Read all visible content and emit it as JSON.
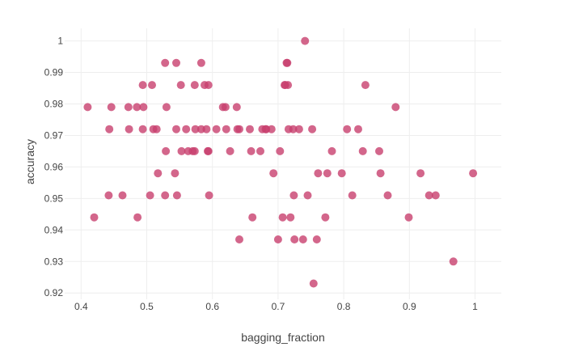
{
  "chart_data": {
    "type": "scatter",
    "xlabel": "bagging_fraction",
    "ylabel": "accuracy",
    "xlim": [
      0.375,
      1.04
    ],
    "ylim": [
      0.918,
      1.004
    ],
    "xticks": [
      0.4,
      0.5,
      0.6,
      0.7,
      0.8,
      0.9,
      1
    ],
    "xtick_labels": [
      "0.4",
      "0.5",
      "0.6",
      "0.7",
      "0.8",
      "0.9",
      "1"
    ],
    "yticks": [
      0.92,
      0.93,
      0.94,
      0.95,
      0.96,
      0.97,
      0.98,
      0.99,
      1
    ],
    "ytick_labels": [
      "0.92",
      "0.93",
      "0.94",
      "0.95",
      "0.96",
      "0.97",
      "0.98",
      "0.99",
      "1"
    ],
    "grid": true,
    "legend": "none",
    "marker_color": "#c8406e",
    "points": [
      {
        "x": 0.41,
        "y": 0.979
      },
      {
        "x": 0.42,
        "y": 0.944
      },
      {
        "x": 0.442,
        "y": 0.951
      },
      {
        "x": 0.443,
        "y": 0.972
      },
      {
        "x": 0.446,
        "y": 0.979
      },
      {
        "x": 0.463,
        "y": 0.951
      },
      {
        "x": 0.472,
        "y": 0.979
      },
      {
        "x": 0.473,
        "y": 0.972
      },
      {
        "x": 0.485,
        "y": 0.979
      },
      {
        "x": 0.486,
        "y": 0.944
      },
      {
        "x": 0.494,
        "y": 0.986
      },
      {
        "x": 0.495,
        "y": 0.979
      },
      {
        "x": 0.494,
        "y": 0.972
      },
      {
        "x": 0.505,
        "y": 0.951
      },
      {
        "x": 0.508,
        "y": 0.986
      },
      {
        "x": 0.51,
        "y": 0.972
      },
      {
        "x": 0.515,
        "y": 0.972
      },
      {
        "x": 0.517,
        "y": 0.958
      },
      {
        "x": 0.528,
        "y": 0.993
      },
      {
        "x": 0.528,
        "y": 0.951
      },
      {
        "x": 0.529,
        "y": 0.965
      },
      {
        "x": 0.53,
        "y": 0.979
      },
      {
        "x": 0.543,
        "y": 0.958
      },
      {
        "x": 0.545,
        "y": 0.993
      },
      {
        "x": 0.545,
        "y": 0.972
      },
      {
        "x": 0.546,
        "y": 0.951
      },
      {
        "x": 0.552,
        "y": 0.986
      },
      {
        "x": 0.553,
        "y": 0.965
      },
      {
        "x": 0.56,
        "y": 0.972
      },
      {
        "x": 0.563,
        "y": 0.965
      },
      {
        "x": 0.57,
        "y": 0.965
      },
      {
        "x": 0.573,
        "y": 0.986
      },
      {
        "x": 0.573,
        "y": 0.965
      },
      {
        "x": 0.574,
        "y": 0.972
      },
      {
        "x": 0.583,
        "y": 0.993
      },
      {
        "x": 0.583,
        "y": 0.972
      },
      {
        "x": 0.588,
        "y": 0.986
      },
      {
        "x": 0.591,
        "y": 0.972
      },
      {
        "x": 0.593,
        "y": 0.965
      },
      {
        "x": 0.594,
        "y": 0.965
      },
      {
        "x": 0.594,
        "y": 0.986
      },
      {
        "x": 0.595,
        "y": 0.951
      },
      {
        "x": 0.606,
        "y": 0.972
      },
      {
        "x": 0.616,
        "y": 0.979
      },
      {
        "x": 0.62,
        "y": 0.979
      },
      {
        "x": 0.621,
        "y": 0.972
      },
      {
        "x": 0.627,
        "y": 0.965
      },
      {
        "x": 0.637,
        "y": 0.979
      },
      {
        "x": 0.638,
        "y": 0.972
      },
      {
        "x": 0.641,
        "y": 0.972
      },
      {
        "x": 0.641,
        "y": 0.937
      },
      {
        "x": 0.657,
        "y": 0.972
      },
      {
        "x": 0.659,
        "y": 0.965
      },
      {
        "x": 0.661,
        "y": 0.944
      },
      {
        "x": 0.673,
        "y": 0.965
      },
      {
        "x": 0.676,
        "y": 0.972
      },
      {
        "x": 0.681,
        "y": 0.972
      },
      {
        "x": 0.682,
        "y": 0.972
      },
      {
        "x": 0.69,
        "y": 0.972
      },
      {
        "x": 0.693,
        "y": 0.958
      },
      {
        "x": 0.7,
        "y": 0.937
      },
      {
        "x": 0.703,
        "y": 0.965
      },
      {
        "x": 0.707,
        "y": 0.944
      },
      {
        "x": 0.71,
        "y": 0.986
      },
      {
        "x": 0.711,
        "y": 0.986
      },
      {
        "x": 0.713,
        "y": 0.993
      },
      {
        "x": 0.714,
        "y": 0.993
      },
      {
        "x": 0.715,
        "y": 0.986
      },
      {
        "x": 0.716,
        "y": 0.972
      },
      {
        "x": 0.719,
        "y": 0.944
      },
      {
        "x": 0.723,
        "y": 0.972
      },
      {
        "x": 0.724,
        "y": 0.951
      },
      {
        "x": 0.725,
        "y": 0.937
      },
      {
        "x": 0.732,
        "y": 0.972
      },
      {
        "x": 0.738,
        "y": 0.937
      },
      {
        "x": 0.741,
        "y": 1.0
      },
      {
        "x": 0.745,
        "y": 0.951
      },
      {
        "x": 0.752,
        "y": 0.972
      },
      {
        "x": 0.754,
        "y": 0.923
      },
      {
        "x": 0.759,
        "y": 0.937
      },
      {
        "x": 0.761,
        "y": 0.958
      },
      {
        "x": 0.772,
        "y": 0.944
      },
      {
        "x": 0.775,
        "y": 0.958
      },
      {
        "x": 0.782,
        "y": 0.965
      },
      {
        "x": 0.797,
        "y": 0.958
      },
      {
        "x": 0.805,
        "y": 0.972
      },
      {
        "x": 0.813,
        "y": 0.951
      },
      {
        "x": 0.822,
        "y": 0.972
      },
      {
        "x": 0.829,
        "y": 0.965
      },
      {
        "x": 0.833,
        "y": 0.986
      },
      {
        "x": 0.854,
        "y": 0.965
      },
      {
        "x": 0.856,
        "y": 0.958
      },
      {
        "x": 0.867,
        "y": 0.951
      },
      {
        "x": 0.879,
        "y": 0.979
      },
      {
        "x": 0.899,
        "y": 0.944
      },
      {
        "x": 0.917,
        "y": 0.958
      },
      {
        "x": 0.93,
        "y": 0.951
      },
      {
        "x": 0.94,
        "y": 0.951
      },
      {
        "x": 0.967,
        "y": 0.93
      },
      {
        "x": 0.997,
        "y": 0.958
      }
    ]
  }
}
